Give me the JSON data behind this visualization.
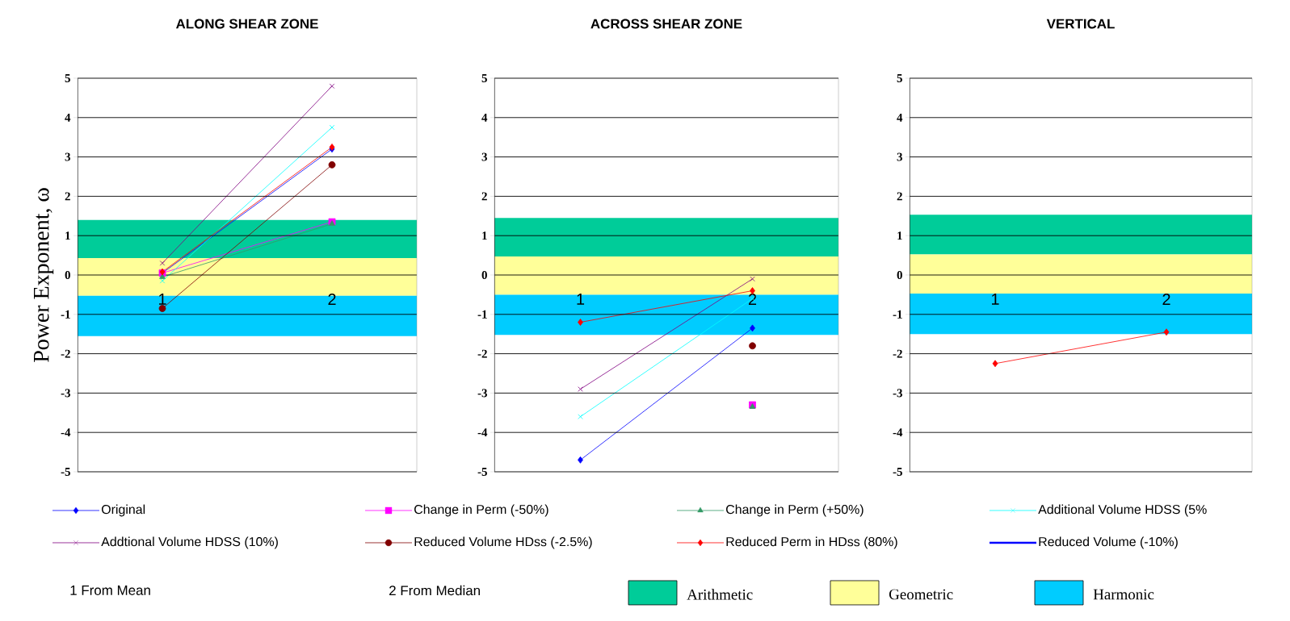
{
  "chart_data": [
    {
      "type": "line",
      "title": "ALONG SHEAR ZONE",
      "ylabel": "Power Exponent, ω",
      "categories": [
        "1",
        "2"
      ],
      "ylim": [
        -5,
        5
      ],
      "yticks": [
        -5,
        -4,
        -3,
        -2,
        -1,
        0,
        1,
        2,
        3,
        4,
        5
      ],
      "grid": "y",
      "legend": "bottom",
      "annotations": [
        "1   From Mean",
        "2   From Median"
      ],
      "bands": [
        {
          "axis": "y",
          "from": 0.43,
          "to": 1.4,
          "label": "Arithmetic",
          "color": "#00cc99"
        },
        {
          "axis": "y",
          "from": -0.53,
          "to": 0.43,
          "label": "Geometric",
          "color": "#ffff99"
        },
        {
          "axis": "y",
          "from": -1.55,
          "to": -0.53,
          "label": "Harmonic",
          "color": "#00ccff"
        }
      ],
      "series": [
        {
          "name": "Original",
          "color": "#0000ff",
          "marker": "diamond",
          "values": [
            0.05,
            3.2
          ]
        },
        {
          "name": "Change in Perm (-50%)",
          "color": "#ff00ff",
          "marker": "square",
          "values": [
            0.05,
            1.35
          ]
        },
        {
          "name": "Change in Perm (+50%)",
          "color": "#339966",
          "marker": "triangle",
          "values": [
            -0.05,
            1.3
          ]
        },
        {
          "name": "Additional Volume HDSS (5%",
          "color": "#00ffff",
          "marker": "cross",
          "values": [
            -0.15,
            3.75
          ]
        },
        {
          "name": "Addtional Volume HDSS (10%)",
          "color": "#800080",
          "marker": "cross",
          "values": [
            0.3,
            4.8
          ]
        },
        {
          "name": "Reduced Volume HDss (-2.5%)",
          "color": "#800000",
          "marker": "circle",
          "values": [
            -0.85,
            2.8
          ]
        },
        {
          "name": "Reduced Perm in HDss (80%)",
          "color": "#ff0000",
          "marker": "diamond",
          "values": [
            0.08,
            3.25
          ]
        },
        {
          "name": "Reduced Volume (-10%)",
          "color": "#0000ff",
          "marker": "none",
          "values": [
            null,
            null
          ]
        }
      ]
    },
    {
      "type": "line",
      "title": "ACROSS SHEAR ZONE",
      "categories": [
        "1",
        "2"
      ],
      "ylim": [
        -5,
        5
      ],
      "yticks": [
        -5,
        -4,
        -3,
        -2,
        -1,
        0,
        1,
        2,
        3,
        4,
        5
      ],
      "grid": "y",
      "bands": [
        {
          "axis": "y",
          "from": 0.47,
          "to": 1.45,
          "color": "#00cc99"
        },
        {
          "axis": "y",
          "from": -0.5,
          "to": 0.47,
          "color": "#ffff99"
        },
        {
          "axis": "y",
          "from": -1.52,
          "to": -0.5,
          "color": "#00ccff"
        }
      ],
      "series": [
        {
          "color": "#0000ff",
          "marker": "diamond",
          "values": [
            -4.7,
            -1.35
          ]
        },
        {
          "color": "#ff00ff",
          "marker": "square",
          "values": [
            null,
            -3.3
          ]
        },
        {
          "color": "#339966",
          "marker": "triangle",
          "values": [
            null,
            -3.35
          ]
        },
        {
          "color": "#00ffff",
          "marker": "cross",
          "values": [
            -3.6,
            -0.6
          ]
        },
        {
          "color": "#800080",
          "marker": "cross",
          "values": [
            -2.9,
            -0.1
          ]
        },
        {
          "color": "#800000",
          "marker": "circle",
          "values": [
            null,
            -1.8
          ]
        },
        {
          "color": "#ff0000",
          "marker": "diamond",
          "values": [
            -1.2,
            -0.4
          ]
        }
      ]
    },
    {
      "type": "line",
      "title": "VERTICAL",
      "categories": [
        "1",
        "2"
      ],
      "ylim": [
        -5,
        5
      ],
      "yticks": [
        -5,
        -4,
        -3,
        -2,
        -1,
        0,
        1,
        2,
        3,
        4,
        5
      ],
      "grid": "y",
      "bands": [
        {
          "axis": "y",
          "from": 0.52,
          "to": 1.53,
          "color": "#00cc99"
        },
        {
          "axis": "y",
          "from": -0.47,
          "to": 0.52,
          "color": "#ffff99"
        },
        {
          "axis": "y",
          "from": -1.5,
          "to": -0.47,
          "color": "#00ccff"
        }
      ],
      "series": [
        {
          "color": "#ff0000",
          "marker": "diamond",
          "values": [
            -2.25,
            -1.45
          ]
        }
      ]
    }
  ]
}
